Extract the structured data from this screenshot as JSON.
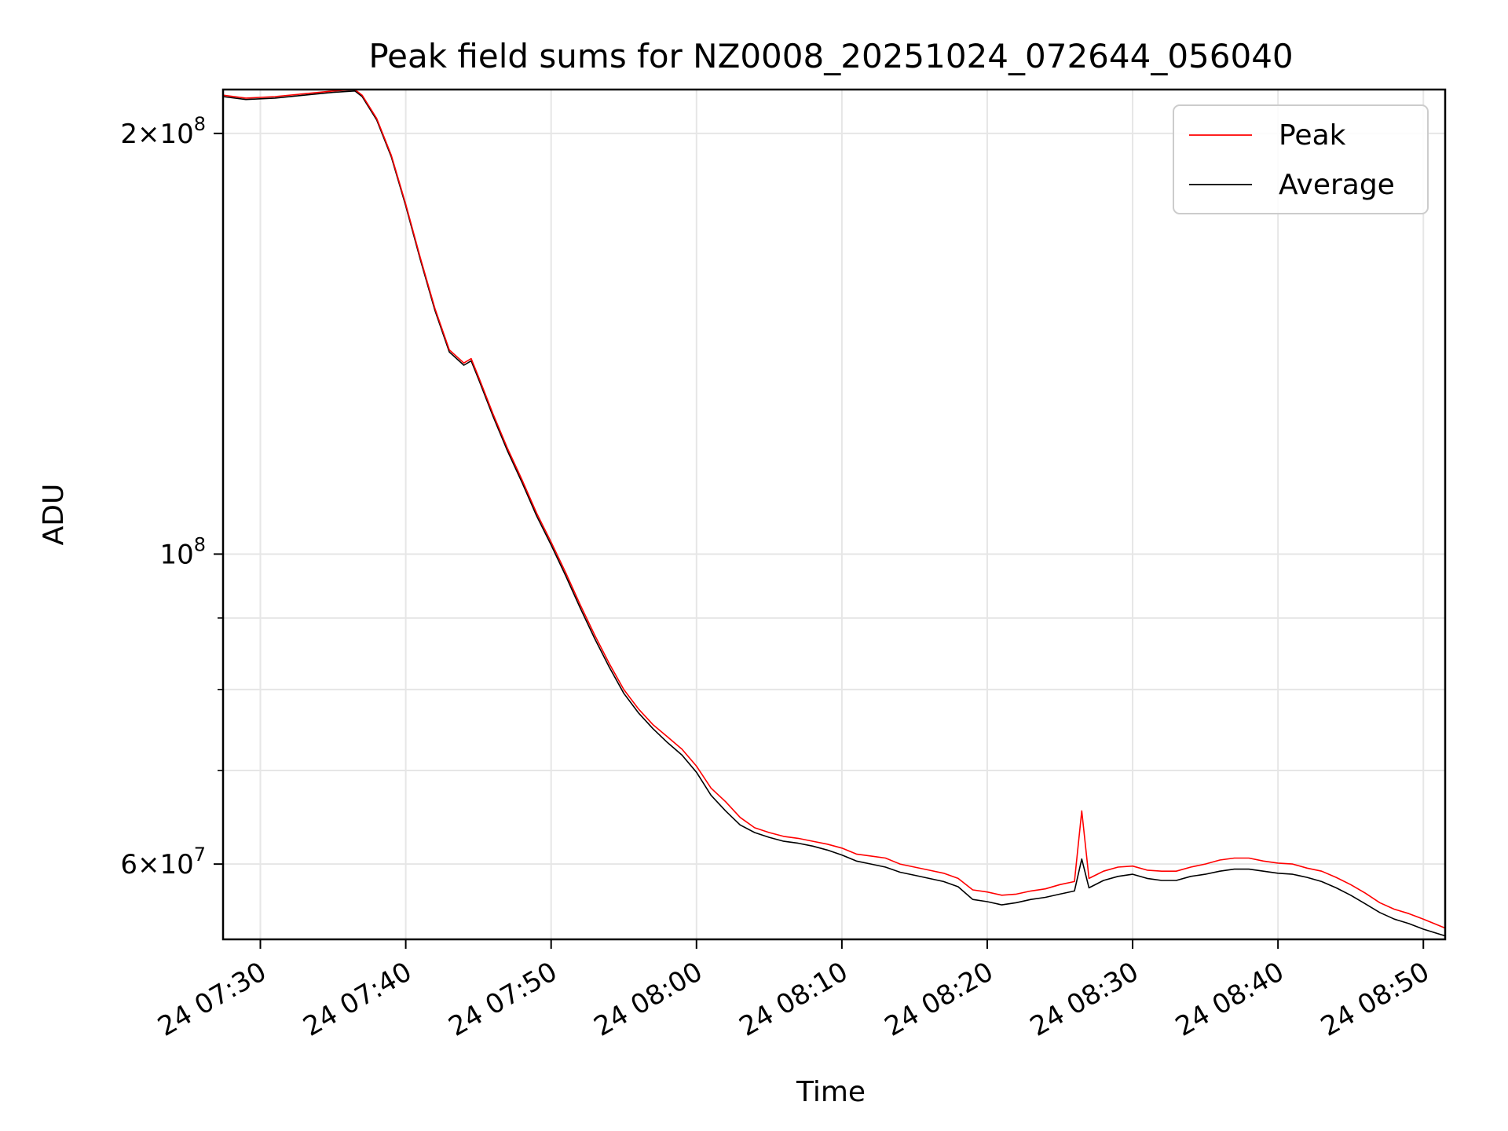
{
  "chart_data": {
    "type": "line",
    "title": "Peak field sums for NZ0008_20251024_072644_056040",
    "xlabel": "Time",
    "ylabel": "ADU",
    "yscale": "log",
    "ylim": [
      53000000,
      215000000
    ],
    "xlim": [
      "2025-10-24 07:27:26",
      "2025-10-24 08:51:30"
    ],
    "x_ticks": [
      {
        "value": "2025-10-24 07:30",
        "label": "24 07:30"
      },
      {
        "value": "2025-10-24 07:40",
        "label": "24 07:40"
      },
      {
        "value": "2025-10-24 07:50",
        "label": "24 07:50"
      },
      {
        "value": "2025-10-24 08:00",
        "label": "24 08:00"
      },
      {
        "value": "2025-10-24 08:10",
        "label": "24 08:10"
      },
      {
        "value": "2025-10-24 08:20",
        "label": "24 08:20"
      },
      {
        "value": "2025-10-24 08:30",
        "label": "24 08:30"
      },
      {
        "value": "2025-10-24 08:40",
        "label": "24 08:40"
      },
      {
        "value": "2025-10-24 08:50",
        "label": "24 08:50"
      }
    ],
    "y_major_ticks": [
      {
        "value": 60000000,
        "base": "6",
        "sup": "7"
      },
      {
        "value": 100000000,
        "base": "",
        "sup": "8"
      },
      {
        "value": 200000000,
        "base": "2",
        "sup": "8"
      }
    ],
    "y_minor_ticks": [
      70000000,
      80000000,
      90000000
    ],
    "grid": true,
    "legend": {
      "position": "top-right",
      "entries": [
        "Peak",
        "Average"
      ]
    },
    "times": [
      "07:27:26",
      "07:29:00",
      "07:31:00",
      "07:33:00",
      "07:35:00",
      "07:36:30",
      "07:37:00",
      "07:38:00",
      "07:39:00",
      "07:40:00",
      "07:41:00",
      "07:42:00",
      "07:43:00",
      "07:44:00",
      "07:44:30",
      "07:45:00",
      "07:46:00",
      "07:47:00",
      "07:48:00",
      "07:49:00",
      "07:50:00",
      "07:51:00",
      "07:52:00",
      "07:53:00",
      "07:54:00",
      "07:55:00",
      "07:56:00",
      "07:57:00",
      "07:58:00",
      "07:59:00",
      "08:00:00",
      "08:01:00",
      "08:02:00",
      "08:03:00",
      "08:04:00",
      "08:05:00",
      "08:06:00",
      "08:07:00",
      "08:08:00",
      "08:09:00",
      "08:10:00",
      "08:11:00",
      "08:12:00",
      "08:13:00",
      "08:14:00",
      "08:15:00",
      "08:16:00",
      "08:17:00",
      "08:18:00",
      "08:19:00",
      "08:20:00",
      "08:21:00",
      "08:22:00",
      "08:23:00",
      "08:24:00",
      "08:25:00",
      "08:26:00",
      "08:26:30",
      "08:27:00",
      "08:28:00",
      "08:29:00",
      "08:30:00",
      "08:31:00",
      "08:32:00",
      "08:33:00",
      "08:34:00",
      "08:35:00",
      "08:36:00",
      "08:37:00",
      "08:38:00",
      "08:39:00",
      "08:40:00",
      "08:41:00",
      "08:42:00",
      "08:43:00",
      "08:44:00",
      "08:45:00",
      "08:46:00",
      "08:47:00",
      "08:48:00",
      "08:49:00",
      "08:50:00",
      "08:51:30"
    ],
    "series": [
      {
        "name": "Peak",
        "color": "#ff0000",
        "values": [
          213000000,
          212000000,
          212500000,
          213500000,
          214500000,
          215000000,
          213000000,
          205000000,
          193000000,
          178000000,
          163000000,
          150000000,
          140000000,
          137000000,
          138000000,
          134000000,
          126000000,
          119000000,
          113000000,
          107000000,
          102000000,
          97000000,
          92000000,
          87500000,
          83500000,
          80000000,
          77500000,
          75500000,
          74000000,
          72500000,
          70500000,
          68000000,
          66500000,
          64800000,
          63700000,
          63200000,
          62800000,
          62600000,
          62300000,
          62000000,
          61600000,
          61000000,
          60800000,
          60600000,
          60000000,
          59700000,
          59400000,
          59100000,
          58600000,
          57500000,
          57300000,
          57000000,
          57100000,
          57400000,
          57600000,
          58000000,
          58300000,
          65500000,
          58600000,
          59300000,
          59700000,
          59800000,
          59400000,
          59300000,
          59300000,
          59700000,
          60000000,
          60400000,
          60600000,
          60600000,
          60300000,
          60100000,
          60000000,
          59600000,
          59300000,
          58700000,
          58000000,
          57200000,
          56300000,
          55700000,
          55300000,
          54800000,
          54000000
        ]
      },
      {
        "name": "Average",
        "color": "#000000",
        "values": [
          212500000,
          211500000,
          212000000,
          213000000,
          214000000,
          214500000,
          212500000,
          204500000,
          192500000,
          177500000,
          162500000,
          149500000,
          139500000,
          136500000,
          137500000,
          133500000,
          125500000,
          118500000,
          112500000,
          106500000,
          101500000,
          96500000,
          91500000,
          87000000,
          83000000,
          79500000,
          77000000,
          75000000,
          73300000,
          71800000,
          69800000,
          67200000,
          65500000,
          64000000,
          63200000,
          62700000,
          62300000,
          62100000,
          61800000,
          61400000,
          60900000,
          60300000,
          60000000,
          59700000,
          59200000,
          58900000,
          58600000,
          58300000,
          57800000,
          56600000,
          56400000,
          56100000,
          56300000,
          56600000,
          56800000,
          57100000,
          57400000,
          60500000,
          57700000,
          58400000,
          58800000,
          59000000,
          58600000,
          58400000,
          58400000,
          58800000,
          59000000,
          59300000,
          59500000,
          59500000,
          59300000,
          59100000,
          59000000,
          58700000,
          58300000,
          57700000,
          57000000,
          56200000,
          55400000,
          54800000,
          54400000,
          53900000,
          53300000
        ]
      }
    ]
  }
}
